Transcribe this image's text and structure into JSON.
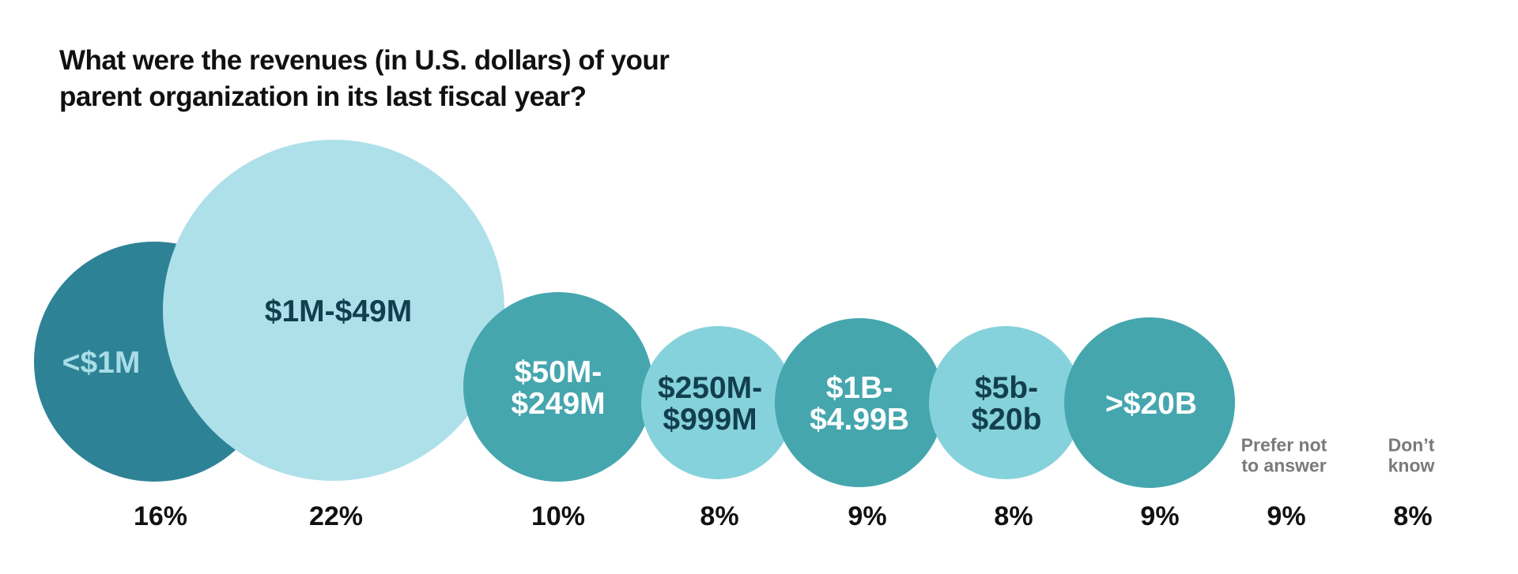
{
  "chart_data": {
    "type": "bubble",
    "title_lines": [
      "What were the revenues (in U.S. dollars) of your",
      "parent organization in its last fiscal year?"
    ],
    "categories": [
      {
        "label_lines": [
          "<$1M"
        ],
        "value": 16,
        "value_label": "16%",
        "fill": "#2e8295",
        "text_color": "#a9dde7",
        "bubble": true
      },
      {
        "label_lines": [
          "$1M-$49M"
        ],
        "value": 22,
        "value_label": "22%",
        "fill": "#aee0ea",
        "text_color": "#123f4f",
        "bubble": true
      },
      {
        "label_lines": [
          "$50M-",
          "$249M"
        ],
        "value": 10,
        "value_label": "10%",
        "fill": "#45a6ae",
        "text_color": "#ffffff",
        "bubble": true
      },
      {
        "label_lines": [
          "$250M-",
          "$999M"
        ],
        "value": 8,
        "value_label": "8%",
        "fill": "#86d2dc",
        "text_color": "#123f4f",
        "bubble": true
      },
      {
        "label_lines": [
          "$1B-",
          "$4.99B"
        ],
        "value": 9,
        "value_label": "9%",
        "fill": "#45a6ae",
        "text_color": "#ffffff",
        "bubble": true
      },
      {
        "label_lines": [
          "$5b-",
          "$20b"
        ],
        "value": 8,
        "value_label": "8%",
        "fill": "#86d2dc",
        "text_color": "#123f4f",
        "bubble": true
      },
      {
        "label_lines": [
          ">$20B"
        ],
        "value": 9,
        "value_label": "9%",
        "fill": "#45a6ae",
        "text_color": "#ffffff",
        "bubble": true
      },
      {
        "label_lines": [
          "Prefer not",
          "to answer"
        ],
        "value": 9,
        "value_label": "9%",
        "fill": "",
        "text_color": "#7a7a7a",
        "bubble": false
      },
      {
        "label_lines": [
          "Don’t",
          "know"
        ],
        "value": 8,
        "value_label": "8%",
        "fill": "",
        "text_color": "#7a7a7a",
        "bubble": false
      }
    ]
  }
}
